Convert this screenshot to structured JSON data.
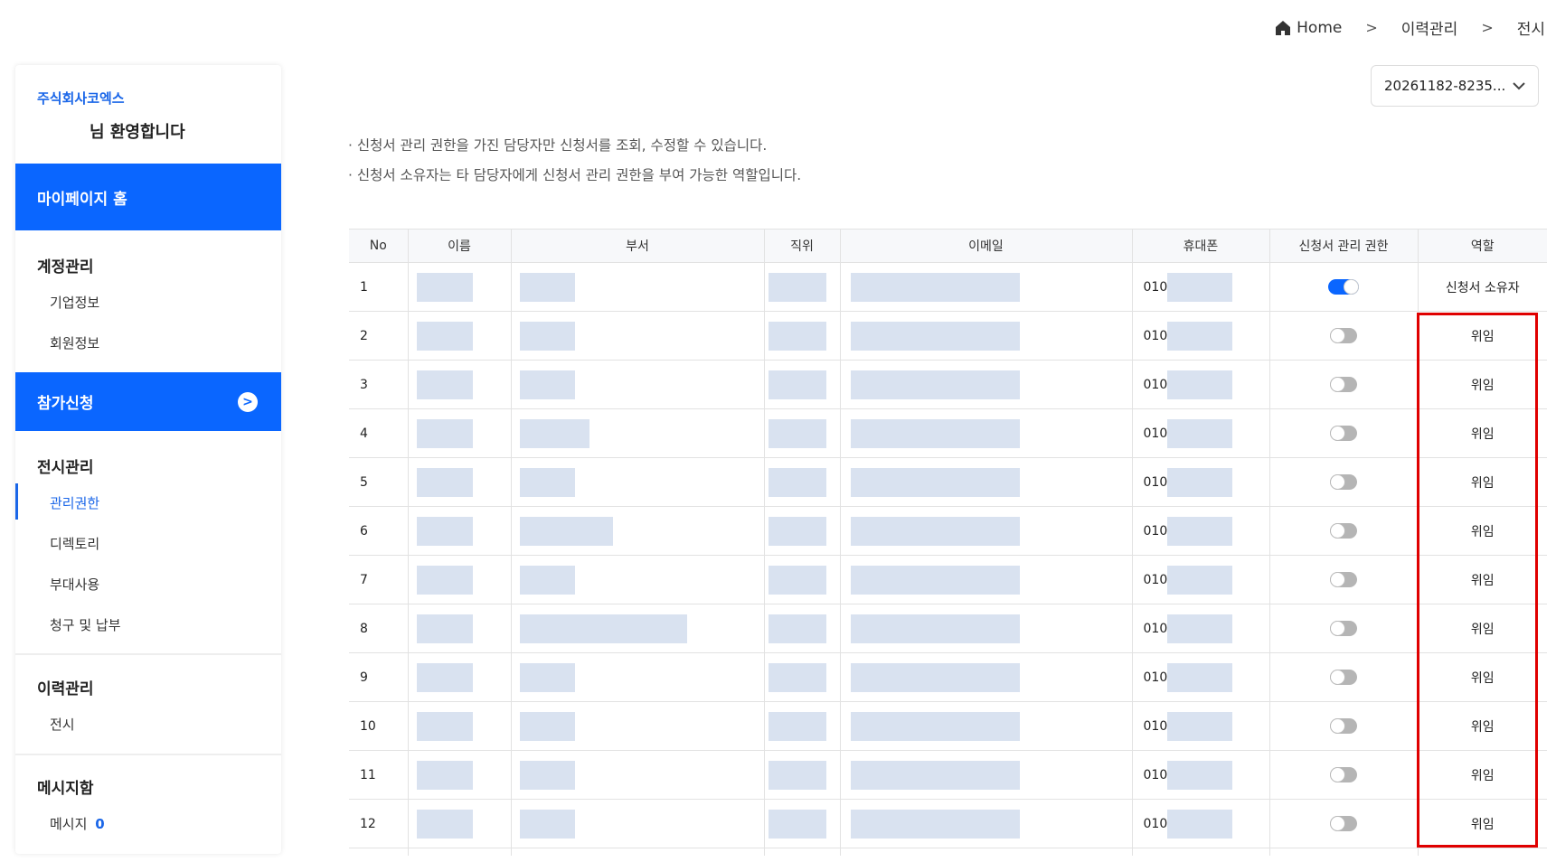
{
  "breadcrumb": {
    "items": [
      "Home",
      "이력관리",
      "전시"
    ],
    "icon": "home-icon"
  },
  "dropdown": {
    "selected": "20261182-8235..."
  },
  "sidebar": {
    "company": "주식회사코엑스",
    "welcome": "님 환영합니다",
    "home": "마이페이지 홈",
    "account": {
      "title": "계정관리",
      "items": [
        "기업정보",
        "회원정보"
      ]
    },
    "apply": "참가신청",
    "exhibit": {
      "title": "전시관리",
      "items": [
        "관리권한",
        "디렉토리",
        "부대사용",
        "청구 및 납부"
      ],
      "active": "관리권한"
    },
    "history": {
      "title": "이력관리",
      "items": [
        "전시"
      ]
    },
    "message": {
      "title": "메시지함",
      "label": "메시지",
      "count": "0"
    }
  },
  "notes": [
    "· 신청서 관리 권한을 가진 담당자만 신청서를 조회, 수정할 수 있습니다.",
    "· 신청서 소유자는 타 담당자에게 신청서 관리 권한을 부여 가능한 역할입니다."
  ],
  "table": {
    "headers": [
      "No",
      "이름",
      "부서",
      "직위",
      "이메일",
      "휴대폰",
      "신청서 관리 권한",
      "역할"
    ],
    "phone_prefix": "010",
    "rows": [
      {
        "no": "1",
        "permission": true,
        "role": "신청서 소유자"
      },
      {
        "no": "2",
        "permission": false,
        "role": "위임"
      },
      {
        "no": "3",
        "permission": false,
        "role": "위임"
      },
      {
        "no": "4",
        "permission": false,
        "role": "위임"
      },
      {
        "no": "5",
        "permission": false,
        "role": "위임"
      },
      {
        "no": "6",
        "permission": false,
        "role": "위임"
      },
      {
        "no": "7",
        "permission": false,
        "role": "위임"
      },
      {
        "no": "8",
        "permission": false,
        "role": "위임"
      },
      {
        "no": "9",
        "permission": false,
        "role": "위임"
      },
      {
        "no": "10",
        "permission": false,
        "role": "위임"
      },
      {
        "no": "11",
        "permission": false,
        "role": "위임"
      },
      {
        "no": "12",
        "permission": false,
        "role": "위임"
      }
    ]
  },
  "colors": {
    "accent": "#0a66ff",
    "highlight": "#e00000",
    "redacted": "#d9e2f0"
  }
}
